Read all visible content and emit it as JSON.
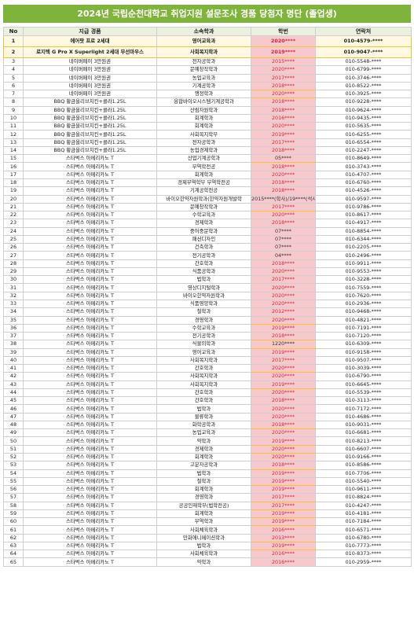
{
  "title": "2024년 국립순천대학교 취업지원 설문조사 경품 당첨자 명단 (졸업생)",
  "colors": {
    "title_bg": "#7fb43a",
    "header_bg": "#ebf1de",
    "hak_bg": "#f7c9cd",
    "hak_text": "#d8263a",
    "highlight_border": "#f3c23c"
  },
  "columns": [
    "No",
    "지급 경품",
    "소속학과",
    "학번",
    "연락처"
  ],
  "rows": [
    {
      "no": "1",
      "prize": "에어팟 프로 2세대",
      "dept": "영어교육과",
      "hak": "2020****",
      "phone": "010-4579-****",
      "hl": true
    },
    {
      "no": "2",
      "prize": "로지텍 G Pro X Superlight 2세대 무선마우스",
      "dept": "사회복지학과",
      "hak": "2019****",
      "phone": "010-9047-****",
      "hl": true
    },
    {
      "no": "3",
      "prize": "네이버페이 3만원권",
      "dept": "전자공학과",
      "hak": "2015****",
      "phone": "010-5548-****"
    },
    {
      "no": "4",
      "prize": "네이버페이 3만원권",
      "dept": "문예창작학과",
      "hak": "2020****",
      "phone": "010-6799-****"
    },
    {
      "no": "5",
      "prize": "네이버페이 3만원권",
      "dept": "농업교육과",
      "hak": "2017****",
      "phone": "010-3746-****"
    },
    {
      "no": "6",
      "prize": "네이버페이 3만원권",
      "dept": "기계공학과",
      "hak": "2018****",
      "phone": "010-8522-****"
    },
    {
      "no": "7",
      "prize": "네이버페이 3만원권",
      "dept": "행정학과",
      "hak": "2020****",
      "phone": "010-3925-****"
    },
    {
      "no": "8",
      "prize": "BBQ 황금올리브치킨+콜라1.25L",
      "dept": "융합바이오시스템기계공학과",
      "hak": "2018****",
      "phone": "010-9228-****"
    },
    {
      "no": "9",
      "prize": "BBQ 황금올리브치킨+콜라1.25L",
      "dept": "산림자원학과",
      "hak": "2018****",
      "phone": "010-9624-****"
    },
    {
      "no": "10",
      "prize": "BBQ 황금올리브치킨+콜라1.25L",
      "dept": "회계학과",
      "hak": "2016****",
      "phone": "010-9435-****"
    },
    {
      "no": "11",
      "prize": "BBQ 황금올리브치킨+콜라1.25L",
      "dept": "회계학과",
      "hak": "2020****",
      "phone": "010-5635-****"
    },
    {
      "no": "12",
      "prize": "BBQ 황금올리브치킨+콜라1.25L",
      "dept": "사회복지학부",
      "hak": "2019****",
      "phone": "010-6255-****"
    },
    {
      "no": "13",
      "prize": "BBQ 황금올리브치킨+콜라1.25L",
      "dept": "전자공학과",
      "hak": "2017****",
      "phone": "010-6554-****"
    },
    {
      "no": "14",
      "prize": "BBQ 황금올리브치킨+콜라1.25L",
      "dept": "농업경제학과",
      "hak": "2018****",
      "phone": "010-2247-****"
    },
    {
      "no": "15",
      "prize": "스타벅스 아메리카노 T",
      "dept": "산업기계공학과",
      "hak": "05****",
      "phone": "010-8649-****"
    },
    {
      "no": "16",
      "prize": "스타벅스 아메리카노 T",
      "dept": "무역학전공",
      "hak": "2018****",
      "phone": "010-3743-****"
    },
    {
      "no": "17",
      "prize": "스타벅스 아메리카노 T",
      "dept": "회계학과",
      "hak": "2020****",
      "phone": "010-4707-****"
    },
    {
      "no": "18",
      "prize": "스타벅스 아메리카노 T",
      "dept": "경제무역학부 무역학전공",
      "hak": "2018****",
      "phone": "010-6760-****"
    },
    {
      "no": "19",
      "prize": "스타벅스 아메리카노 T",
      "dept": "기계공학전공",
      "hak": "2018****",
      "phone": "010-4526-****"
    },
    {
      "no": "20",
      "prize": "스타벅스 아메리카노 T",
      "dept": "바이오한약자원학과(한약자원개발학",
      "hak": "2015****(학사)/19****(석사)",
      "phone": "010-9597-****"
    },
    {
      "no": "21",
      "prize": "스타벅스 아메리카노 T",
      "dept": "문예창작학과",
      "hak": "2017****",
      "phone": "010-9786-****"
    },
    {
      "no": "22",
      "prize": "스타벅스 아메리카노 T",
      "dept": "수학교육과",
      "hak": "2020****",
      "phone": "010-8617-****"
    },
    {
      "no": "23",
      "prize": "스타벅스 아메리카노 T",
      "dept": "경제학과",
      "hak": "2018****",
      "phone": "010-4917-****"
    },
    {
      "no": "24",
      "prize": "스타벅스 아메리카노 T",
      "dept": "중어중문학과",
      "hak": "07****",
      "phone": "010-8854-****"
    },
    {
      "no": "25",
      "prize": "스타벅스 아메리카노 T",
      "dept": "패션디자인",
      "hak": "07****",
      "phone": "010-6344-****"
    },
    {
      "no": "26",
      "prize": "스타벅스 아메리카노 T",
      "dept": "건축학과",
      "hak": "07****",
      "phone": "010-2205-****"
    },
    {
      "no": "27",
      "prize": "스타벅스 아메리카노 T",
      "dept": "전기공학과",
      "hak": "04****",
      "phone": "010-2496-****"
    },
    {
      "no": "28",
      "prize": "스타벅스 아메리카노 T",
      "dept": "간호학과",
      "hak": "2018****",
      "phone": "010-9911-****"
    },
    {
      "no": "29",
      "prize": "스타벅스 아메리카노 T",
      "dept": "식품공학과",
      "hak": "2020****",
      "phone": "010-9553-****"
    },
    {
      "no": "30",
      "prize": "스타벅스 아메리카노 T",
      "dept": "법학과",
      "hak": "2017****",
      "phone": "010-3228-****"
    },
    {
      "no": "31",
      "prize": "스타벅스 아메리카노 T",
      "dept": "영상디지털학과",
      "hak": "2020****",
      "phone": "010-7559-****"
    },
    {
      "no": "32",
      "prize": "스타벅스 아메리카노 T",
      "dept": "바이오한약자원학과",
      "hak": "2020****",
      "phone": "010-7620-****"
    },
    {
      "no": "33",
      "prize": "스타벅스 아메리카노 T",
      "dept": "식품영양학과",
      "hak": "2020****",
      "phone": "010-2936-****"
    },
    {
      "no": "34",
      "prize": "스타벅스 아메리카노 T",
      "dept": "철학과",
      "hak": "2012****",
      "phone": "010-9468-****"
    },
    {
      "no": "35",
      "prize": "스타벅스 아메리카노 T",
      "dept": "경영학과",
      "hak": "2020****",
      "phone": "010-4821-****"
    },
    {
      "no": "36",
      "prize": "스타벅스 아메리카노 T",
      "dept": "수학교육과",
      "hak": "2019****",
      "phone": "010-7191-****"
    },
    {
      "no": "37",
      "prize": "스타벅스 아메리카노 T",
      "dept": "전기공학과",
      "hak": "2018****",
      "phone": "010-7120-****"
    },
    {
      "no": "38",
      "prize": "스타벅스 아메리카노 T",
      "dept": "식물의학과",
      "hak": "1220****",
      "phone": "010-6309-****"
    },
    {
      "no": "39",
      "prize": "스타벅스 아메리카노 T",
      "dept": "영어교육과",
      "hak": "2019****",
      "phone": "010-9158-****"
    },
    {
      "no": "40",
      "prize": "스타벅스 아메리카노 T",
      "dept": "사회복지학과",
      "hak": "2017****",
      "phone": "010-9507-****"
    },
    {
      "no": "41",
      "prize": "스타벅스 아메리카노 T",
      "dept": "간호학과",
      "hak": "2020****",
      "phone": "010-3039-****"
    },
    {
      "no": "42",
      "prize": "스타벅스 아메리카노 T",
      "dept": "사회복지학과",
      "hak": "2020****",
      "phone": "010-6790-****"
    },
    {
      "no": "43",
      "prize": "스타벅스 아메리카노 T",
      "dept": "사회복지학과",
      "hak": "2019****",
      "phone": "010-6645-****"
    },
    {
      "no": "44",
      "prize": "스타벅스 아메리카노 T",
      "dept": "간호학과",
      "hak": "2020****",
      "phone": "010-5539-****"
    },
    {
      "no": "45",
      "prize": "스타벅스 아메리카노 T",
      "dept": "간호학과",
      "hak": "2018****",
      "phone": "010-3113-****"
    },
    {
      "no": "46",
      "prize": "스타벅스 아메리카노 T",
      "dept": "법학과",
      "hak": "2020****",
      "phone": "010-7172-****"
    },
    {
      "no": "47",
      "prize": "스타벅스 아메리카노 T",
      "dept": "물류학과",
      "hak": "2020****",
      "phone": "010-4686-****"
    },
    {
      "no": "48",
      "prize": "스타벅스 아메리카노 T",
      "dept": "화학공학과",
      "hak": "2018****",
      "phone": "010-9031-****"
    },
    {
      "no": "49",
      "prize": "스타벅스 아메리카노 T",
      "dept": "농업교육과",
      "hak": "2020****",
      "phone": "010-6681-****"
    },
    {
      "no": "50",
      "prize": "스타벅스 아메리카노 T",
      "dept": "약학과",
      "hak": "2019****",
      "phone": "010-8213-****"
    },
    {
      "no": "51",
      "prize": "스타벅스 아메리카노 T",
      "dept": "경제학과",
      "hak": "2020****",
      "phone": "010-6607-****"
    },
    {
      "no": "52",
      "prize": "스타벅스 아메리카노 T",
      "dept": "회계학과",
      "hak": "2020****",
      "phone": "010-9166-****"
    },
    {
      "no": "53",
      "prize": "스타벅스 아메리카노 T",
      "dept": "고분자공학과",
      "hak": "2018****",
      "phone": "010-8586-****"
    },
    {
      "no": "54",
      "prize": "스타벅스 아메리카노 T",
      "dept": "법학과",
      "hak": "2019****",
      "phone": "010-7706-****"
    },
    {
      "no": "55",
      "prize": "스타벅스 아메리카노 T",
      "dept": "철학과",
      "hak": "2019****",
      "phone": "010-5540-****"
    },
    {
      "no": "56",
      "prize": "스타벅스 아메리카노 T",
      "dept": "회계학과",
      "hak": "2019****",
      "phone": "010-9611-****"
    },
    {
      "no": "57",
      "prize": "스타벅스 아메리카노 T",
      "dept": "경영학과",
      "hak": "2017****",
      "phone": "010-8824-****"
    },
    {
      "no": "58",
      "prize": "스타벅스 아메리카노 T",
      "dept": "공공인재학부(법학전공)",
      "hak": "2017****",
      "phone": "010-4247-****"
    },
    {
      "no": "59",
      "prize": "스타벅스 아메리카노 T",
      "dept": "회계학과",
      "hak": "2019****",
      "phone": "010-4181-****"
    },
    {
      "no": "60",
      "prize": "스타벅스 아메리카노 T",
      "dept": "무역학과",
      "hak": "2019****",
      "phone": "010-7184-****"
    },
    {
      "no": "61",
      "prize": "스타벅스 아메리카노 T",
      "dept": "사회체육학과",
      "hak": "2016****",
      "phone": "010-6571-****"
    },
    {
      "no": "62",
      "prize": "스타벅스 아메리카노 T",
      "dept": "만화애니메이션학과",
      "hak": "2013****",
      "phone": "010-6780-****"
    },
    {
      "no": "63",
      "prize": "스타벅스 아메리카노 T",
      "dept": "법학과",
      "hak": "2019****",
      "phone": "010-7773-****"
    },
    {
      "no": "64",
      "prize": "스타벅스 아메리카노 T",
      "dept": "사회체육학과",
      "hak": "2016****",
      "phone": "010-8373-****"
    },
    {
      "no": "65",
      "prize": "스타벅스 아메리카노 T",
      "dept": "약학과",
      "hak": "2016****",
      "phone": "010-2959-****"
    }
  ]
}
